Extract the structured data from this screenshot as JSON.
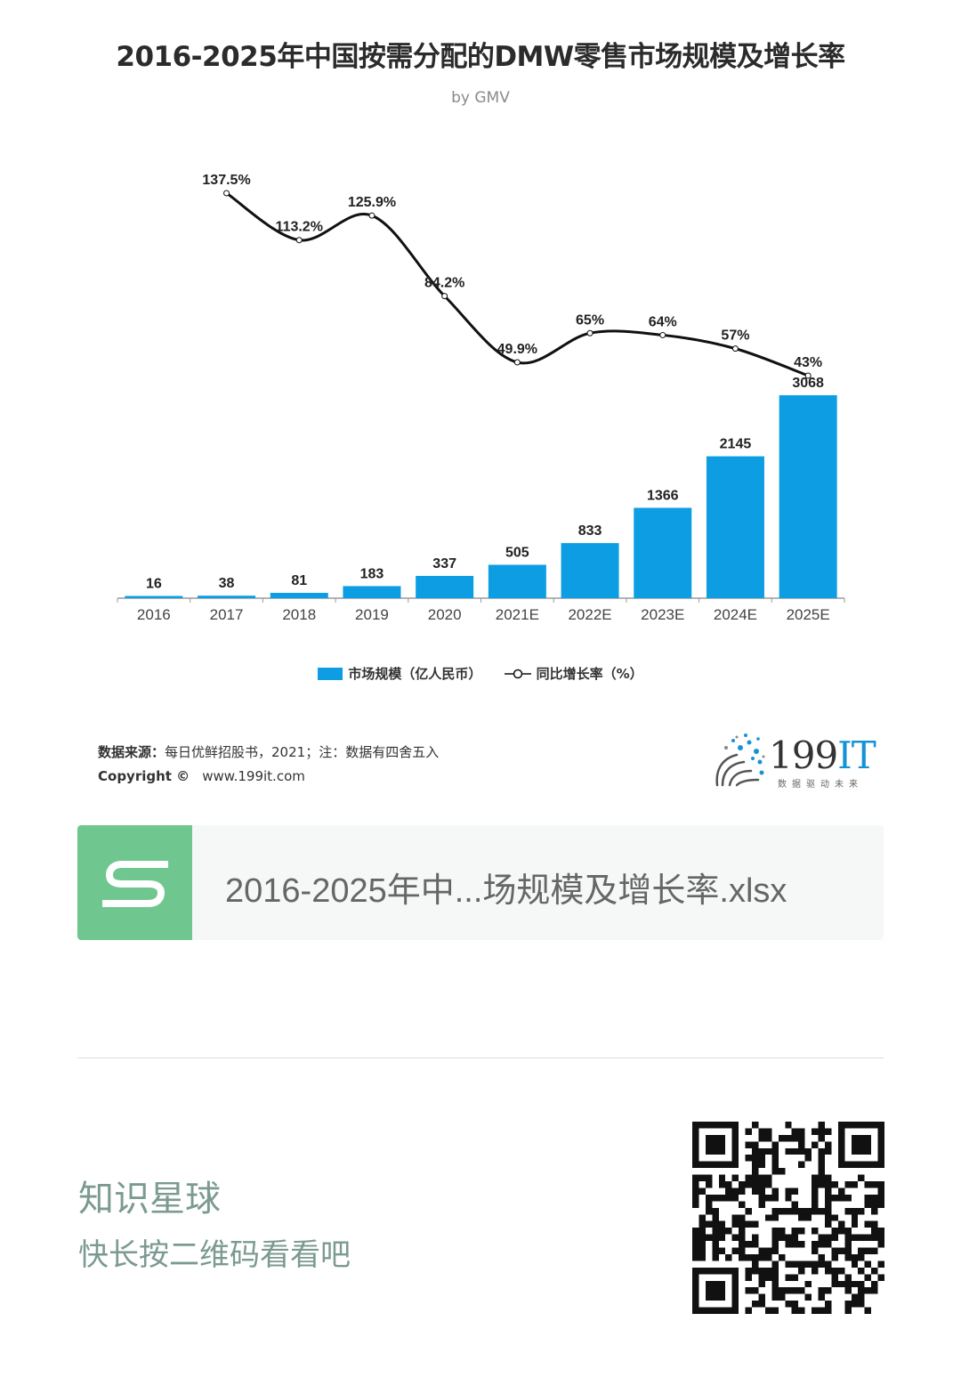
{
  "chart_data": {
    "type": "bar",
    "title": "2016-2025年中国按需分配的DMW零售市场规模及增长率",
    "subtitle": "by GMV",
    "categories": [
      "2016",
      "2017",
      "2018",
      "2019",
      "2020",
      "2021E",
      "2022E",
      "2023E",
      "2024E",
      "2025E"
    ],
    "series": [
      {
        "name": "市场规模（亿人民币）",
        "type": "bar",
        "color": "#0d9de3",
        "values": [
          16,
          38,
          81,
          183,
          337,
          505,
          833,
          1366,
          2145,
          3068
        ],
        "labels": [
          "16",
          "38",
          "81",
          "183",
          "337",
          "505",
          "833",
          "1366",
          "2145",
          "3068"
        ]
      },
      {
        "name": "同比增长率（%）",
        "type": "line",
        "color": "#111111",
        "values": [
          null,
          137.5,
          113.2,
          125.9,
          84.2,
          49.9,
          65,
          64,
          57,
          43
        ],
        "labels": [
          "",
          "137.5%",
          "113.2%",
          "125.9%",
          "84.2%",
          "49.9%",
          "65%",
          "64%",
          "57%",
          "43%"
        ]
      }
    ],
    "ylim_bar": [
      0,
      3068
    ],
    "legend_position": "bottom",
    "grid": false
  },
  "legend": {
    "bar": "市场规模（亿人民币）",
    "line": "同比增长率（%）"
  },
  "footer": {
    "source_label": "数据来源：",
    "source_text": "每日优鲜招股书，2021；注：数据有四舍五入",
    "copyright_label": "Copyright ©",
    "copyright_url": "www.199it.com",
    "logo_number": "199",
    "logo_it": "IT",
    "logo_tagline": "数据驱动未来"
  },
  "file": {
    "name": "2016-2025年中...场规模及增长率.xlsx",
    "icon": "spreadsheet-s-icon",
    "icon_color": "#6fc78f"
  },
  "planet": {
    "title": "知识星球",
    "subtitle": "快长按二维码看看吧"
  },
  "qr": {
    "icon": "qr-code-icon"
  }
}
